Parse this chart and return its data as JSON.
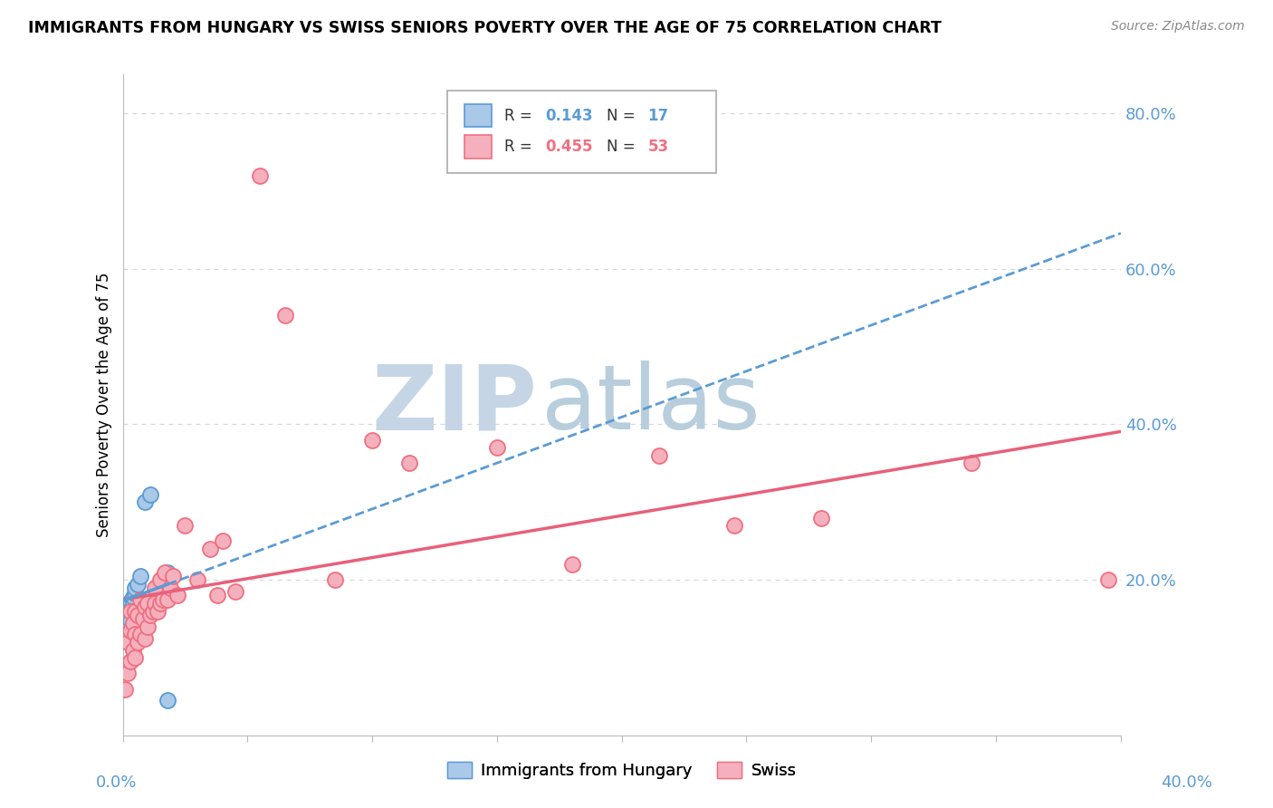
{
  "title": "IMMIGRANTS FROM HUNGARY VS SWISS SENIORS POVERTY OVER THE AGE OF 75 CORRELATION CHART",
  "source": "Source: ZipAtlas.com",
  "ylabel": "Seniors Poverty Over the Age of 75",
  "legend_label1": "Immigrants from Hungary",
  "legend_label2": "Swiss",
  "r1": "0.143",
  "n1": "17",
  "r2": "0.455",
  "n2": "53",
  "hungary_color": "#aac8e8",
  "swiss_color": "#f5b0be",
  "hungary_edge_color": "#5b9bd5",
  "swiss_edge_color": "#f07080",
  "hungary_trend_color": "#5b9bd5",
  "swiss_trend_color": "#e8607a",
  "watermark_zip_color": "#c8d8e8",
  "watermark_atlas_color": "#b8cce0",
  "background_color": "#ffffff",
  "grid_color": "#d8d8d8",
  "axis_color": "#bbbbbb",
  "label_color": "#5b9bd5",
  "xlim": [
    0.0,
    0.4
  ],
  "ylim": [
    0.0,
    0.85
  ],
  "yticks": [
    0.0,
    0.2,
    0.4,
    0.6,
    0.8
  ],
  "ytick_labels": [
    "",
    "20.0%",
    "40.0%",
    "60.0%",
    "80.0%"
  ],
  "xtick_left": "0.0%",
  "xtick_right": "40.0%",
  "hungary_x": [
    0.001,
    0.001,
    0.002,
    0.002,
    0.003,
    0.003,
    0.003,
    0.004,
    0.004,
    0.005,
    0.005,
    0.006,
    0.007,
    0.009,
    0.011,
    0.018,
    0.018
  ],
  "hungary_y": [
    0.135,
    0.16,
    0.145,
    0.155,
    0.148,
    0.163,
    0.172,
    0.17,
    0.178,
    0.183,
    0.19,
    0.195,
    0.205,
    0.3,
    0.31,
    0.21,
    0.045
  ],
  "swiss_x": [
    0.001,
    0.001,
    0.001,
    0.002,
    0.002,
    0.003,
    0.003,
    0.003,
    0.004,
    0.004,
    0.005,
    0.005,
    0.005,
    0.006,
    0.006,
    0.007,
    0.007,
    0.008,
    0.009,
    0.009,
    0.01,
    0.01,
    0.011,
    0.012,
    0.013,
    0.013,
    0.014,
    0.015,
    0.015,
    0.016,
    0.017,
    0.018,
    0.019,
    0.02,
    0.022,
    0.025,
    0.03,
    0.035,
    0.038,
    0.04,
    0.045,
    0.055,
    0.065,
    0.085,
    0.1,
    0.115,
    0.15,
    0.18,
    0.215,
    0.245,
    0.28,
    0.34,
    0.395
  ],
  "swiss_y": [
    0.06,
    0.09,
    0.13,
    0.08,
    0.12,
    0.095,
    0.135,
    0.16,
    0.11,
    0.145,
    0.1,
    0.13,
    0.16,
    0.12,
    0.155,
    0.13,
    0.175,
    0.15,
    0.125,
    0.165,
    0.14,
    0.17,
    0.155,
    0.16,
    0.17,
    0.19,
    0.16,
    0.17,
    0.2,
    0.175,
    0.21,
    0.175,
    0.19,
    0.205,
    0.18,
    0.27,
    0.2,
    0.24,
    0.18,
    0.25,
    0.185,
    0.72,
    0.54,
    0.2,
    0.38,
    0.35,
    0.37,
    0.22,
    0.36,
    0.27,
    0.28,
    0.35,
    0.2
  ]
}
